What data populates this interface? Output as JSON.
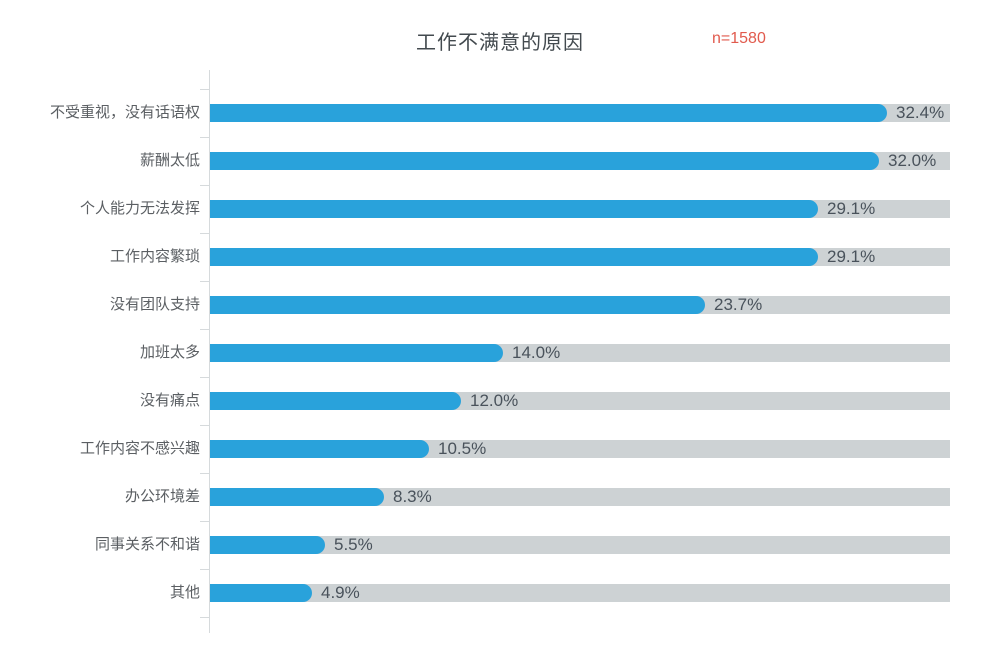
{
  "header": {
    "title": "工作不满意的原因",
    "sample_label": "n=1580"
  },
  "colors": {
    "bar": "#29A2DB",
    "track": "#CDD2D4",
    "axis": "#D6DADC",
    "title_text": "#434A4F",
    "sample_text": "#E15A4D",
    "category_text": "#5B5F63",
    "value_text": "#49525B"
  },
  "chart_data": {
    "type": "bar",
    "orientation": "horizontal",
    "title": "工作不满意的原因",
    "annotation": "n=1580",
    "categories": [
      "不受重视，没有话语权",
      "薪酬太低",
      "个人能力无法发挥",
      "工作内容繁琐",
      "没有团队支持",
      "加班太多",
      "没有痛点",
      "工作内容不感兴趣",
      "办公环境差",
      "同事关系不和谐",
      "其他"
    ],
    "values": [
      32.4,
      32.0,
      29.1,
      29.1,
      23.7,
      14.0,
      12.0,
      10.5,
      8.3,
      5.5,
      4.9
    ],
    "value_labels": [
      "32.4%",
      "32.0%",
      "29.1%",
      "29.1%",
      "23.7%",
      "14.0%",
      "12.0%",
      "10.5%",
      "8.3%",
      "5.5%",
      "4.9%"
    ],
    "xlabel": "",
    "ylabel": "",
    "xlim": [
      0,
      35.4
    ],
    "grid": "off",
    "legend": "none",
    "track_background": true
  }
}
